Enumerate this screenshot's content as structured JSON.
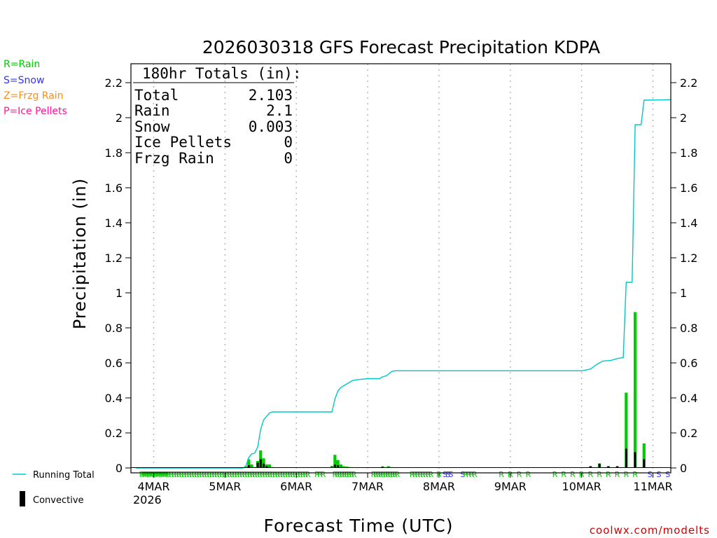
{
  "chart_data": {
    "type": "bar",
    "title": "2026030318 GFS Forecast Precipitation KDPA",
    "xlabel": "Forecast Time (UTC)",
    "ylabel": "Precipitation (in)",
    "ylim": [
      0,
      2.3
    ],
    "yticks": [
      "0",
      "0.2",
      "0.4",
      "0.6",
      "0.8",
      "1",
      "1.2",
      "1.4",
      "1.6",
      "1.8",
      "2",
      "2.2"
    ],
    "x_unit": "forecast hours from 2026-03-03 18 UTC",
    "xlim": [
      0,
      180
    ],
    "x_ticks": [
      {
        "label": "4MAR",
        "hour": 6
      },
      {
        "label": "5MAR",
        "hour": 30
      },
      {
        "label": "6MAR",
        "hour": 54
      },
      {
        "label": "7MAR",
        "hour": 78
      },
      {
        "label": "8MAR",
        "hour": 102
      },
      {
        "label": "9MAR",
        "hour": 126
      },
      {
        "label": "10MAR",
        "hour": 150
      },
      {
        "label": "11MAR",
        "hour": 174
      }
    ],
    "x_year_label": "2026",
    "legend": {
      "rain": "R=Rain",
      "snow": "S=Snow",
      "frzg": "Z=Frzg Rain",
      "ice": "P=Ice Pellets",
      "running_total": "Running Total",
      "convective": "Convective"
    },
    "totals": {
      "header": "180hr Totals (in):",
      "rows": [
        {
          "label": "Total",
          "value": "2.103"
        },
        {
          "label": "Rain",
          "value": "2.1"
        },
        {
          "label": "Snow",
          "value": "0.003"
        },
        {
          "label": "Ice Pellets",
          "value": "0"
        },
        {
          "label": "Frzg Rain",
          "value": "0"
        }
      ]
    },
    "credit": "coolwx.com/modelts",
    "colors": {
      "rain": "#00cc00",
      "snow": "#3333ff",
      "frzg": "#ff8c1a",
      "ice": "#ff1493",
      "running_total": "#00c8c8",
      "convective": "#000000",
      "credit": "#cc0000"
    },
    "series": [
      {
        "name": "Precipitation (hourly)",
        "points": [
          {
            "hour": 37,
            "value": 0.01,
            "conv": 0.0
          },
          {
            "hour": 38,
            "value": 0.05,
            "conv": 0.015
          },
          {
            "hour": 39,
            "value": 0.02,
            "conv": 0.005
          },
          {
            "hour": 40,
            "value": 0.005,
            "conv": 0.0
          },
          {
            "hour": 41,
            "value": 0.04,
            "conv": 0.03
          },
          {
            "hour": 42,
            "value": 0.1,
            "conv": 0.05
          },
          {
            "hour": 43,
            "value": 0.055,
            "conv": 0.025
          },
          {
            "hour": 44,
            "value": 0.02,
            "conv": 0.01
          },
          {
            "hour": 45,
            "value": 0.02,
            "conv": 0.005
          },
          {
            "hour": 46,
            "value": 0.005,
            "conv": 0.0
          },
          {
            "hour": 66,
            "value": 0.012,
            "conv": 0.005
          },
          {
            "hour": 67,
            "value": 0.075,
            "conv": 0.02
          },
          {
            "hour": 68,
            "value": 0.045,
            "conv": 0.015
          },
          {
            "hour": 69,
            "value": 0.02,
            "conv": 0.005
          },
          {
            "hour": 70,
            "value": 0.01,
            "conv": 0.0
          },
          {
            "hour": 71,
            "value": 0.008,
            "conv": 0.0
          },
          {
            "hour": 72,
            "value": 0.005,
            "conv": 0.0
          },
          {
            "hour": 83,
            "value": 0.008,
            "conv": 0.008
          },
          {
            "hour": 84,
            "value": 0.005,
            "conv": 0.003
          },
          {
            "hour": 85,
            "value": 0.01,
            "conv": 0.005
          },
          {
            "hour": 86,
            "value": 0.005,
            "conv": 0.002
          },
          {
            "hour": 153,
            "value": 0.01,
            "conv": 0.01
          },
          {
            "hour": 156,
            "value": 0.025,
            "conv": 0.025
          },
          {
            "hour": 159,
            "value": 0.01,
            "conv": 0.01
          },
          {
            "hour": 162,
            "value": 0.01,
            "conv": 0.01
          },
          {
            "hour": 165,
            "value": 0.43,
            "conv": 0.11
          },
          {
            "hour": 168,
            "value": 0.89,
            "conv": 0.09
          },
          {
            "hour": 171,
            "value": 0.14,
            "conv": 0.05
          }
        ]
      },
      {
        "name": "Running Total",
        "points": [
          [
            0,
            0
          ],
          [
            36,
            0
          ],
          [
            37,
            0.01
          ],
          [
            38,
            0.06
          ],
          [
            39,
            0.08
          ],
          [
            40,
            0.085
          ],
          [
            41,
            0.12
          ],
          [
            42,
            0.22
          ],
          [
            43,
            0.275
          ],
          [
            44,
            0.295
          ],
          [
            45,
            0.315
          ],
          [
            46,
            0.32
          ],
          [
            66,
            0.32
          ],
          [
            67,
            0.395
          ],
          [
            68,
            0.44
          ],
          [
            69,
            0.46
          ],
          [
            70,
            0.47
          ],
          [
            71,
            0.48
          ],
          [
            72,
            0.49
          ],
          [
            73,
            0.5
          ],
          [
            75,
            0.505
          ],
          [
            78,
            0.51
          ],
          [
            82,
            0.51
          ],
          [
            83,
            0.52
          ],
          [
            84,
            0.525
          ],
          [
            85,
            0.535
          ],
          [
            86,
            0.55
          ],
          [
            87,
            0.555
          ],
          [
            150,
            0.555
          ],
          [
            153,
            0.565
          ],
          [
            155,
            0.59
          ],
          [
            157,
            0.61
          ],
          [
            160,
            0.615
          ],
          [
            162,
            0.625
          ],
          [
            164,
            0.63
          ],
          [
            165,
            1.06
          ],
          [
            167,
            1.06
          ],
          [
            168,
            1.96
          ],
          [
            170,
            1.96
          ],
          [
            171,
            2.1
          ],
          [
            180,
            2.103
          ]
        ]
      }
    ],
    "ptype_strips": [
      {
        "type": "rain",
        "from": 2,
        "to": 11,
        "step": 0.6
      },
      {
        "type": "rain",
        "from": 12,
        "to": 58,
        "step": 0.85
      },
      {
        "type": "rain",
        "from": 61,
        "to": 63,
        "step": 1
      },
      {
        "type": "rain",
        "from": 67,
        "to": 74,
        "step": 0.8
      },
      {
        "type": "rain",
        "from": 80,
        "to": 88,
        "step": 0.8
      },
      {
        "type": "rain",
        "from": 93,
        "to": 100,
        "step": 0.9
      },
      {
        "type": "rain",
        "from": 102,
        "to": 102,
        "step": 1
      },
      {
        "type": "snow",
        "from": 104,
        "to": 106,
        "step": 1
      },
      {
        "type": "snow",
        "from": 110,
        "to": 110,
        "step": 1
      },
      {
        "type": "rain",
        "from": 111,
        "to": 114,
        "step": 1
      },
      {
        "type": "rain",
        "from": 123,
        "to": 133,
        "step": 3
      },
      {
        "type": "rain",
        "from": 141,
        "to": 170,
        "step": 3
      },
      {
        "type": "snow",
        "from": 173,
        "to": 179,
        "step": 3
      }
    ]
  }
}
